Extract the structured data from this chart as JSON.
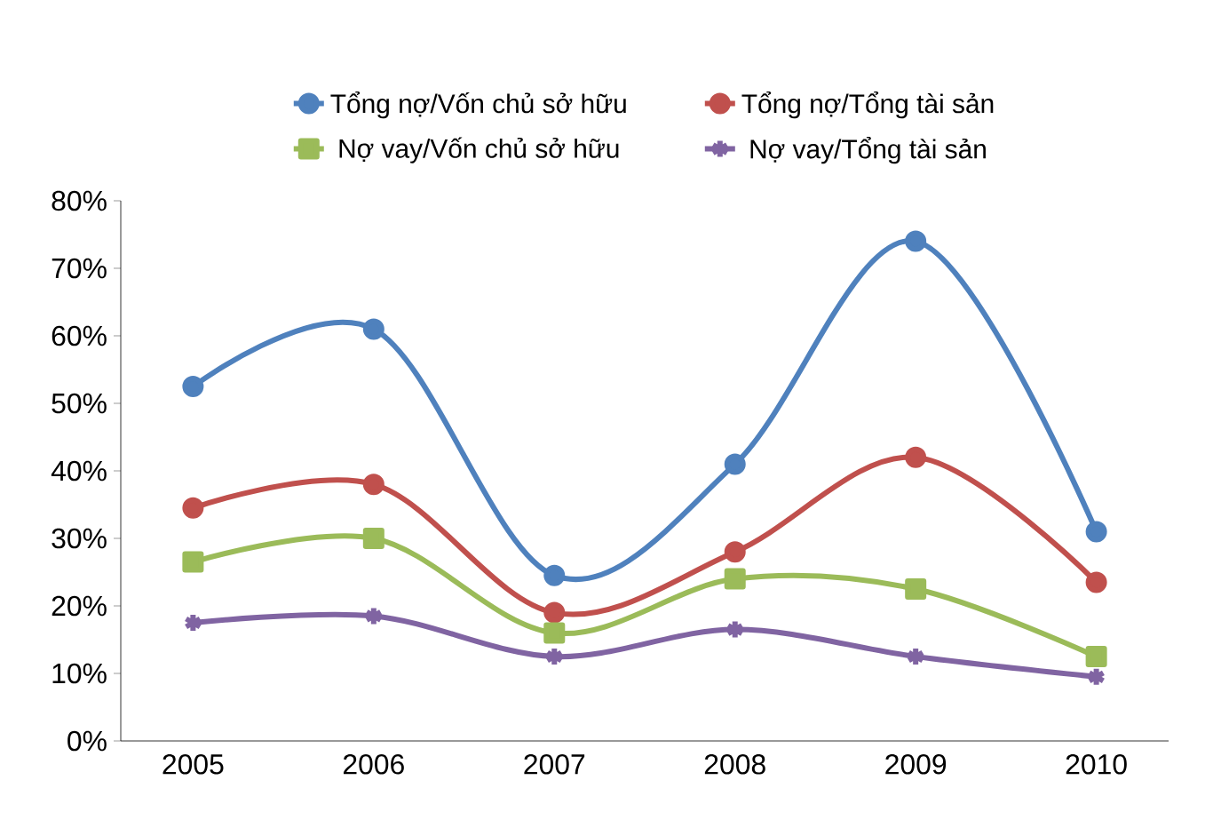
{
  "chart_data": {
    "type": "line",
    "categories": [
      "2005",
      "2006",
      "2007",
      "2008",
      "2009",
      "2010"
    ],
    "series": [
      {
        "name": "Tổng nợ/Vốn chủ sở hữu",
        "color": "#4f81bd",
        "marker": "circle",
        "values": [
          52.5,
          61,
          24.5,
          41,
          74,
          31
        ]
      },
      {
        "name": "Tổng nợ/Tổng tài sản",
        "color": "#c0504d",
        "marker": "circle",
        "values": [
          34.5,
          38,
          19,
          28,
          42,
          23.5
        ]
      },
      {
        "name": "Nợ vay/Vốn chủ sở hữu",
        "color": "#9bbb59",
        "marker": "square",
        "values": [
          26.5,
          30,
          16,
          24,
          22.5,
          12.5
        ]
      },
      {
        "name": "Nợ vay/Tổng tài sản",
        "color": "#8064a2",
        "marker": "cross",
        "values": [
          17.5,
          18.5,
          12.5,
          16.5,
          12.5,
          9.5
        ]
      }
    ],
    "ylim": [
      0,
      80
    ],
    "yticks": [
      {
        "value": 0,
        "label": "0%"
      },
      {
        "value": 10,
        "label": "10%"
      },
      {
        "value": 20,
        "label": "20%"
      },
      {
        "value": 30,
        "label": "30%"
      },
      {
        "value": 40,
        "label": "40%"
      },
      {
        "value": 50,
        "label": "50%"
      },
      {
        "value": 60,
        "label": "60%"
      },
      {
        "value": 70,
        "label": "70%"
      },
      {
        "value": 80,
        "label": "80%"
      }
    ],
    "legend": "top",
    "grid": false,
    "line_style": "solid"
  }
}
